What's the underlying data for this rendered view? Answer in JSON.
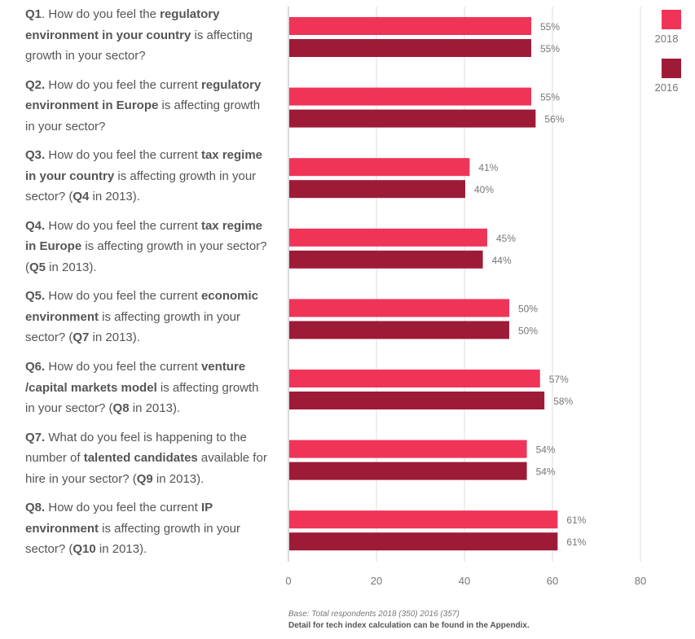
{
  "questions": [
    {
      "parts": [
        {
          "t": "Q1",
          "b": true
        },
        {
          "t": ". How do you feel the ",
          "b": false
        },
        {
          "t": "regulatory environment in your country",
          "b": true
        },
        {
          "t": " is affecting growth in your sector?",
          "b": false
        }
      ]
    },
    {
      "parts": [
        {
          "t": "Q2.",
          "b": true
        },
        {
          "t": " How do you feel the current ",
          "b": false
        },
        {
          "t": "regulatory environment in Europe",
          "b": true
        },
        {
          "t": " is affecting growth in your sector?",
          "b": false
        }
      ]
    },
    {
      "parts": [
        {
          "t": "Q3.",
          "b": true
        },
        {
          "t": " How do you feel the current ",
          "b": false
        },
        {
          "t": "tax regime in your country",
          "b": true
        },
        {
          "t": " is affecting growth in your sector? (",
          "b": false
        },
        {
          "t": "Q4",
          "b": true
        },
        {
          "t": " in 2013).",
          "b": false
        }
      ]
    },
    {
      "parts": [
        {
          "t": "Q4.",
          "b": true
        },
        {
          "t": " How do you feel the current ",
          "b": false
        },
        {
          "t": "tax regime in Europe",
          "b": true
        },
        {
          "t": " is affecting growth in your sector? (",
          "b": false
        },
        {
          "t": "Q5",
          "b": true
        },
        {
          "t": " in 2013).",
          "b": false
        }
      ]
    },
    {
      "parts": [
        {
          "t": "Q5.",
          "b": true
        },
        {
          "t": " How do you feel the current ",
          "b": false
        },
        {
          "t": "economic environment",
          "b": true
        },
        {
          "t": " is affecting growth in your sector? (",
          "b": false
        },
        {
          "t": "Q7",
          "b": true
        },
        {
          "t": " in 2013).",
          "b": false
        }
      ]
    },
    {
      "parts": [
        {
          "t": "Q6.",
          "b": true
        },
        {
          "t": " How do you feel the current ",
          "b": false
        },
        {
          "t": "venture /capital markets model",
          "b": true
        },
        {
          "t": " is affecting growth in your sector? (",
          "b": false
        },
        {
          "t": "Q8",
          "b": true
        },
        {
          "t": " in 2013).",
          "b": false
        }
      ]
    },
    {
      "parts": [
        {
          "t": "Q7.",
          "b": true
        },
        {
          "t": " What do you feel is happening to the number of ",
          "b": false
        },
        {
          "t": "talented candidates",
          "b": true
        },
        {
          "t": " available for hire in your sector? (",
          "b": false
        },
        {
          "t": "Q9",
          "b": true
        },
        {
          "t": " in 2013).",
          "b": false
        }
      ]
    },
    {
      "parts": [
        {
          "t": "Q8.",
          "b": true
        },
        {
          "t": " How do you feel the current ",
          "b": false
        },
        {
          "t": "IP environment",
          "b": true
        },
        {
          "t": " is affecting growth in your sector? (",
          "b": false
        },
        {
          "t": "Q10",
          "b": true
        },
        {
          "t": " in 2013).",
          "b": false
        }
      ]
    }
  ],
  "chart_data": {
    "type": "bar",
    "orientation": "horizontal",
    "categories": [
      "Q1",
      "Q2",
      "Q3",
      "Q4",
      "Q5",
      "Q6",
      "Q7",
      "Q8"
    ],
    "series": [
      {
        "name": "2018",
        "color": "#ef3458",
        "values": [
          55,
          55,
          41,
          45,
          50,
          57,
          54,
          61
        ]
      },
      {
        "name": "2016",
        "color": "#9e1b37",
        "values": [
          55,
          56,
          40,
          44,
          50,
          58,
          54,
          61
        ]
      }
    ],
    "value_suffix": "%",
    "xlim": [
      0,
      80
    ],
    "xticks": [
      "0",
      "20",
      "40",
      "60",
      "80"
    ],
    "grid": true,
    "legend_position": "top-right"
  },
  "notes": {
    "base": "Base: Total respondents 2018 (350) 2016 (357)",
    "detail": "Detail for tech index calculation can be found in the Appendix."
  }
}
